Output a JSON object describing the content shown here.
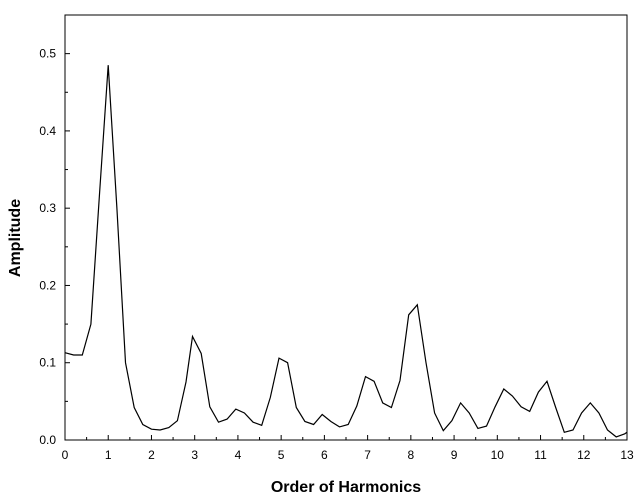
{
  "chart_data": {
    "type": "line",
    "title": "",
    "xlabel": "Order of Harmonics",
    "ylabel": "Amplitude",
    "xlim": [
      0,
      13
    ],
    "ylim": [
      0,
      0.55
    ],
    "xticks": [
      0,
      1,
      2,
      3,
      4,
      5,
      6,
      7,
      8,
      9,
      10,
      11,
      12,
      13
    ],
    "xtick_labels": [
      "0",
      "1",
      "2",
      "3",
      "4",
      "5",
      "6",
      "7",
      "8",
      "9",
      "10",
      "11",
      "12",
      "13"
    ],
    "yticks": [
      0.0,
      0.1,
      0.2,
      0.3,
      0.4,
      0.5
    ],
    "ytick_labels": [
      "0.0",
      "0.1",
      "0.2",
      "0.3",
      "0.4",
      "0.5"
    ],
    "grid": false,
    "line_color": "#000000",
    "series": [
      {
        "x": [
          0,
          0.2,
          0.4,
          0.6,
          0.8,
          1.0,
          1.2,
          1.4,
          1.6,
          1.8,
          2.0,
          2.2,
          2.4,
          2.6,
          2.8,
          2.95,
          3.15,
          3.35,
          3.55,
          3.75,
          3.95,
          4.15,
          4.35,
          4.55,
          4.75,
          4.95,
          5.15,
          5.35,
          5.55,
          5.75,
          5.95,
          6.15,
          6.35,
          6.55,
          6.75,
          6.95,
          7.15,
          7.35,
          7.55,
          7.75,
          7.95,
          8.15,
          8.35,
          8.55,
          8.75,
          8.95,
          9.15,
          9.35,
          9.55,
          9.75,
          9.95,
          10.15,
          10.35,
          10.55,
          10.75,
          10.95,
          11.15,
          11.35,
          11.55,
          11.75,
          11.95,
          12.15,
          12.35,
          12.55,
          12.75,
          12.95,
          13.0
        ],
        "y": [
          0.113,
          0.11,
          0.11,
          0.15,
          0.32,
          0.485,
          0.3,
          0.1,
          0.042,
          0.02,
          0.014,
          0.013,
          0.016,
          0.025,
          0.075,
          0.134,
          0.112,
          0.043,
          0.023,
          0.027,
          0.04,
          0.035,
          0.023,
          0.019,
          0.055,
          0.106,
          0.1,
          0.042,
          0.024,
          0.02,
          0.033,
          0.024,
          0.017,
          0.02,
          0.044,
          0.082,
          0.076,
          0.048,
          0.042,
          0.077,
          0.162,
          0.175,
          0.1,
          0.035,
          0.012,
          0.025,
          0.048,
          0.035,
          0.015,
          0.018,
          0.043,
          0.066,
          0.057,
          0.043,
          0.037,
          0.062,
          0.076,
          0.042,
          0.01,
          0.013,
          0.035,
          0.048,
          0.035,
          0.013,
          0.004,
          0.008,
          0.01
        ]
      }
    ]
  }
}
